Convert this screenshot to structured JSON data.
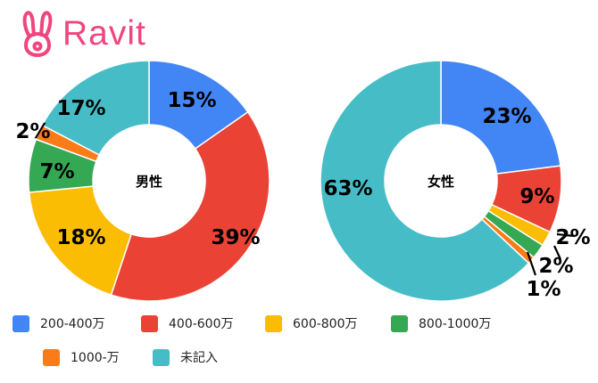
{
  "brand": {
    "name": "Ravit",
    "color": "#f0457f"
  },
  "colors": {
    "200-400万": "#4285f4",
    "400-600万": "#ea4335",
    "600-800万": "#fbbc04",
    "800-1000万": "#34a853",
    "1000-万": "#fa7b17",
    "未記入": "#46bdc6"
  },
  "chart_data": [
    {
      "type": "pie",
      "title": "男性",
      "categories": [
        "200-400万",
        "400-600万",
        "600-800万",
        "800-1000万",
        "1000-万",
        "未記入"
      ],
      "values": [
        15,
        39,
        18,
        7,
        2,
        17
      ],
      "labels": [
        "15%",
        "39%",
        "18%",
        "7%",
        "2%",
        "17%"
      ],
      "donut": true
    },
    {
      "type": "pie",
      "title": "女性",
      "categories": [
        "200-400万",
        "400-600万",
        "600-800万",
        "800-1000万",
        "1000-万",
        "未記入"
      ],
      "values": [
        23,
        9,
        2,
        2,
        1,
        63
      ],
      "labels": [
        "23%",
        "9%",
        "2%",
        "2%",
        "1%",
        "63%"
      ],
      "donut": true
    }
  ],
  "legend": {
    "items": [
      {
        "label": "200-400万",
        "color": "#4285f4"
      },
      {
        "label": "400-600万",
        "color": "#ea4335"
      },
      {
        "label": "600-800万",
        "color": "#fbbc04"
      },
      {
        "label": "800-1000万",
        "color": "#34a853"
      },
      {
        "label": "1000-万",
        "color": "#fa7b17"
      },
      {
        "label": "未記入",
        "color": "#46bdc6"
      }
    ]
  }
}
